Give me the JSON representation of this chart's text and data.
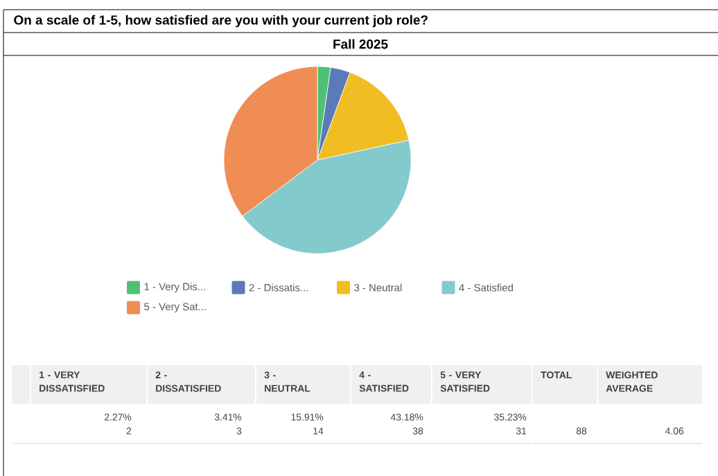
{
  "chart_data": {
    "type": "pie",
    "title": "On a scale of 1-5, how satisfied are you with your current job role?",
    "subtitle": "Fall 2025",
    "categories": [
      "1 - Very Dis...",
      "2 - Dissatis...",
      "3 - Neutral",
      "4 - Satisfied",
      "5 - Very Sat..."
    ],
    "values": [
      2.27,
      3.41,
      15.91,
      43.18,
      35.23
    ],
    "colors": [
      "#4fc172",
      "#5a7bb8",
      "#f0bd22",
      "#83cacd",
      "#f08d55"
    ],
    "legend": "bottom",
    "annotations": [
      "1 - VERY DISSATISFIED",
      "2 - DISSATISFIED",
      "3 - NEUTRAL",
      "4 - SATISFIED",
      "5 - VERY SATISFIED",
      "TOTAL",
      "WEIGHTED AVERAGE",
      "2.27%",
      "3.41%",
      "15.91%",
      "43.18%",
      "35.23%",
      "2",
      "3",
      "14",
      "38",
      "31",
      "88",
      "4.06"
    ]
  }
}
